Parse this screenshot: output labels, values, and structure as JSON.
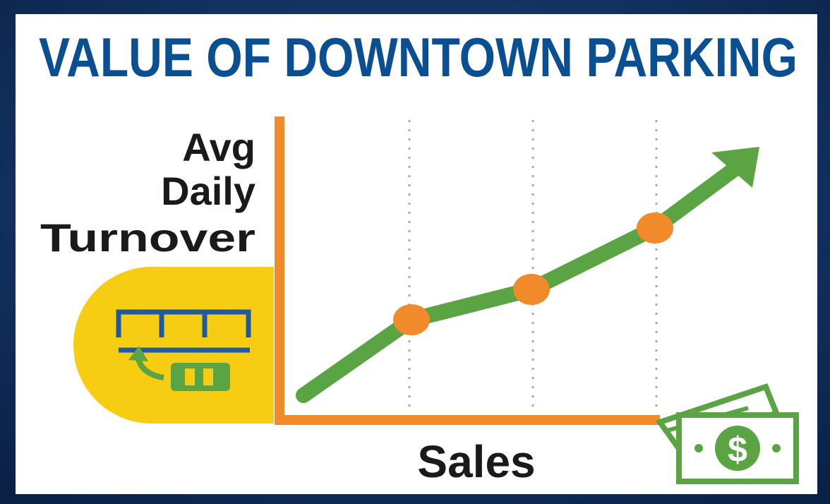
{
  "title": "VALUE OF DOWNTOWN PARKING",
  "y_axis_label": [
    "Avg",
    "Daily",
    "Turnover"
  ],
  "x_axis_label": "Sales",
  "money_icon": {
    "label": "$"
  }
}
